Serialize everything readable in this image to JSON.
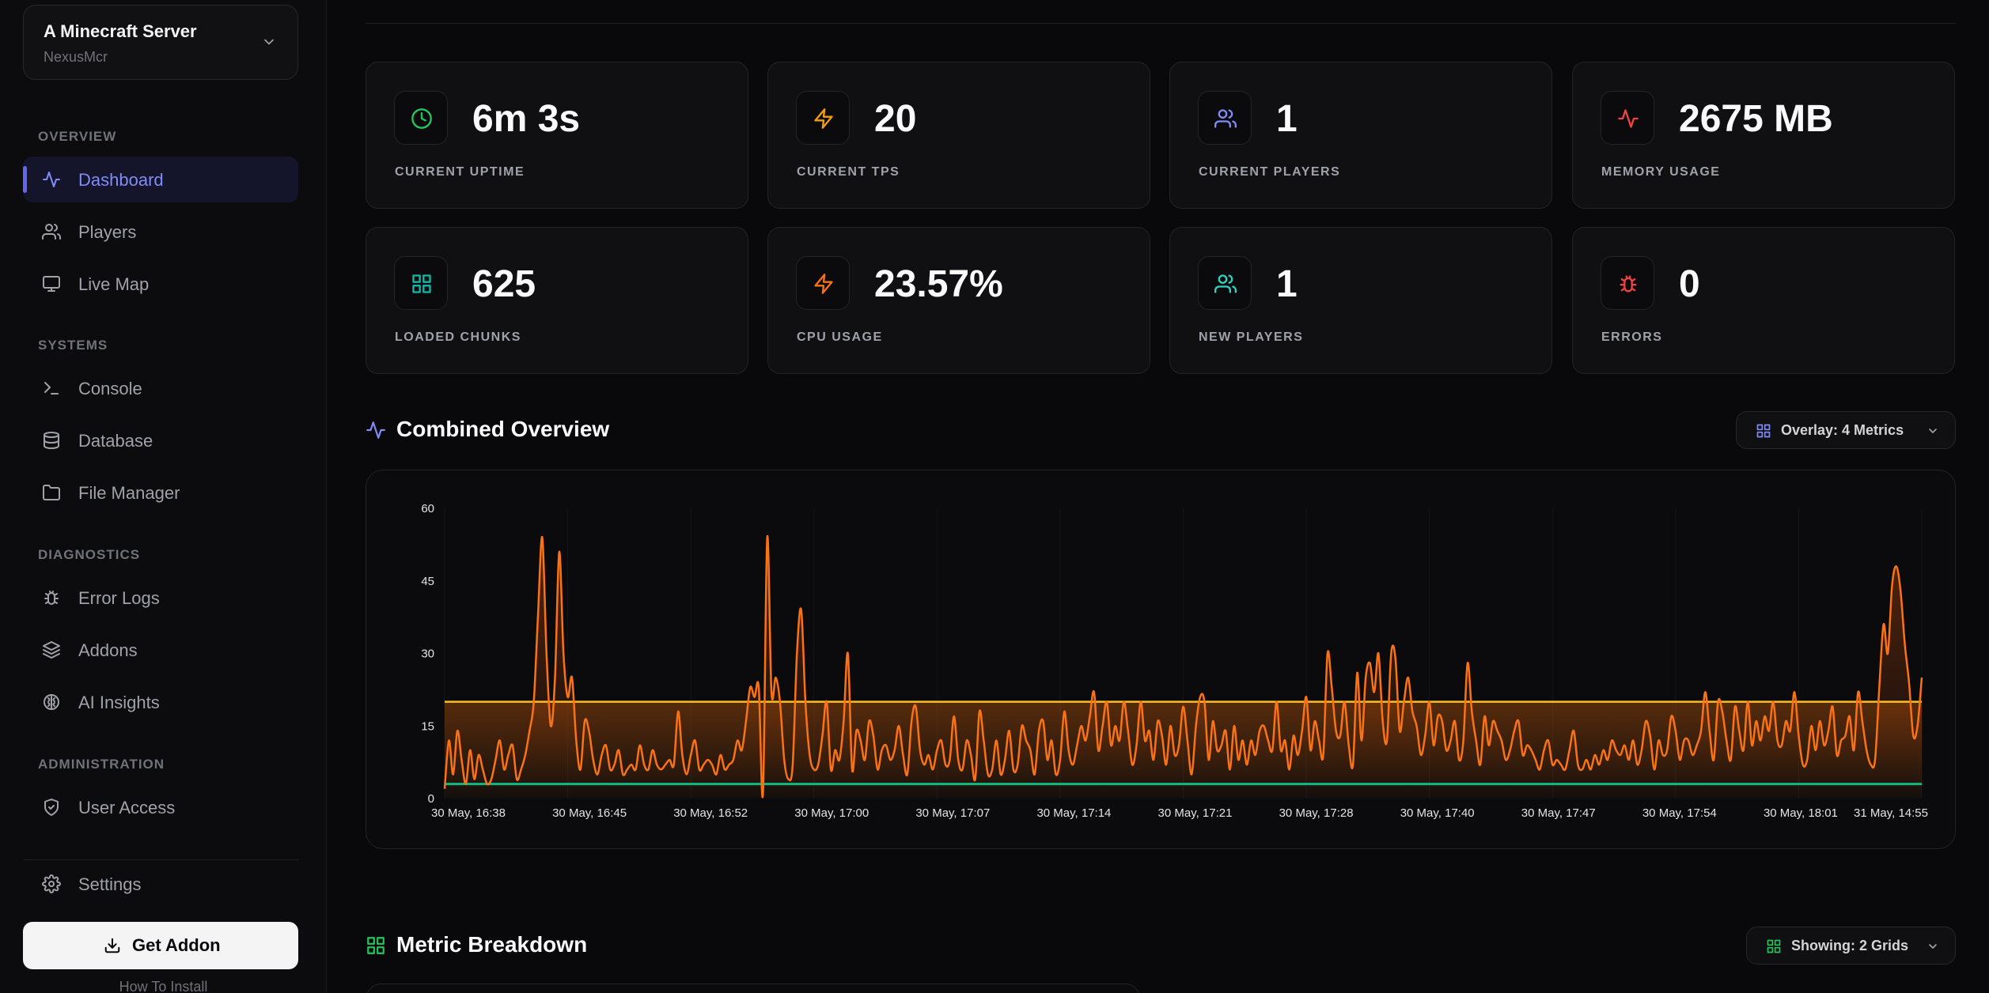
{
  "server": {
    "name": "A Minecraft Server",
    "subtitle": "NexusMcr"
  },
  "sidebar": {
    "sections": [
      {
        "label": "OVERVIEW",
        "items": [
          {
            "label": "Dashboard",
            "icon": "activity-icon",
            "active": true
          },
          {
            "label": "Players",
            "icon": "users-icon"
          },
          {
            "label": "Live Map",
            "icon": "monitor-icon"
          }
        ]
      },
      {
        "label": "SYSTEMS",
        "items": [
          {
            "label": "Console",
            "icon": "terminal-icon"
          },
          {
            "label": "Database",
            "icon": "database-icon"
          },
          {
            "label": "File Manager",
            "icon": "folder-icon"
          }
        ]
      },
      {
        "label": "DIAGNOSTICS",
        "items": [
          {
            "label": "Error Logs",
            "icon": "bug-icon"
          },
          {
            "label": "Addons",
            "icon": "layers-icon"
          },
          {
            "label": "AI Insights",
            "icon": "brain-icon"
          }
        ]
      },
      {
        "label": "ADMINISTRATION",
        "items": [
          {
            "label": "User Access",
            "icon": "shield-check-icon"
          }
        ]
      }
    ],
    "settings_label": "Settings",
    "get_addon_label": "Get Addon",
    "how_install_label": "How To Install"
  },
  "stats": [
    {
      "value": "6m 3s",
      "label": "CURRENT UPTIME",
      "icon": "clock-icon",
      "color": "#22c55e"
    },
    {
      "value": "20",
      "label": "CURRENT TPS",
      "icon": "zap-icon",
      "color": "#f59e0b"
    },
    {
      "value": "1",
      "label": "CURRENT PLAYERS",
      "icon": "users-icon",
      "color": "#818cf8"
    },
    {
      "value": "2675 MB",
      "label": "MEMORY USAGE",
      "icon": "activity-icon",
      "color": "#ef4444"
    },
    {
      "value": "625",
      "label": "LOADED CHUNKS",
      "icon": "grid-icon",
      "color": "#14b8a6"
    },
    {
      "value": "23.57%",
      "label": "CPU USAGE",
      "icon": "zap-icon",
      "color": "#f97316"
    },
    {
      "value": "1",
      "label": "NEW PLAYERS",
      "icon": "users-icon",
      "color": "#2dd4bf"
    },
    {
      "value": "0",
      "label": "ERRORS",
      "icon": "bug-icon",
      "color": "#ef4444"
    }
  ],
  "overview": {
    "title": "Combined Overview",
    "overlay_label": "Overlay: 4 Metrics"
  },
  "breakdown": {
    "title": "Metric Breakdown",
    "showing_label": "Showing: 2 Grids"
  },
  "colors": {
    "accent": "#6366f1",
    "cpu": "#f97316",
    "tps": "#fbbf24",
    "players": "#10b981"
  },
  "chart_data": {
    "type": "line",
    "title": "",
    "ylim": [
      0,
      60
    ],
    "yticks": [
      0,
      15,
      30,
      45,
      60
    ],
    "grid": false,
    "x_tick_labels": [
      "30 May, 16:38",
      "30 May, 16:45",
      "30 May, 16:52",
      "30 May, 17:00",
      "30 May, 17:07",
      "30 May, 17:14",
      "30 May, 17:21",
      "30 May, 17:28",
      "30 May, 17:40",
      "30 May, 17:47",
      "30 May, 17:54",
      "30 May, 18:01",
      "31 May, 14:55"
    ],
    "series": [
      {
        "name": "",
        "color": "#fbbf24",
        "values_constant": 20
      },
      {
        "name": "",
        "color": "#10b981",
        "values_constant": 3
      },
      {
        "name": "",
        "color": "#f97316",
        "values": [
          2,
          12,
          5,
          14,
          8,
          3,
          10,
          4,
          9,
          6,
          3,
          4,
          8,
          12,
          6,
          9,
          11,
          4,
          6,
          9,
          14,
          20,
          38,
          54,
          30,
          15,
          25,
          51,
          30,
          21,
          25,
          12,
          6,
          16,
          14,
          8,
          5,
          9,
          11,
          6,
          7,
          10,
          5,
          6,
          7,
          6,
          11,
          7,
          6,
          10,
          7,
          6,
          7,
          8,
          7,
          18,
          9,
          5,
          9,
          12,
          6,
          7,
          8,
          7,
          5,
          9,
          6,
          7,
          8,
          12,
          10,
          16,
          23,
          21,
          23,
          1,
          54,
          22,
          25,
          20,
          8,
          4,
          7,
          30,
          39,
          20,
          9,
          6,
          7,
          13,
          20,
          6,
          10,
          8,
          16,
          30,
          6,
          14,
          12,
          8,
          16,
          13,
          6,
          10,
          11,
          8,
          10,
          15,
          9,
          5,
          16,
          19,
          10,
          7,
          9,
          6,
          10,
          12,
          7,
          8,
          17,
          8,
          6,
          12,
          9,
          4,
          18,
          12,
          5,
          6,
          12,
          5,
          8,
          14,
          6,
          7,
          15,
          12,
          10,
          5,
          14,
          16,
          8,
          12,
          5,
          8,
          18,
          10,
          7,
          11,
          15,
          12,
          17,
          22,
          10,
          15,
          20,
          11,
          15,
          12,
          20,
          14,
          7,
          11,
          20,
          12,
          14,
          8,
          16,
          13,
          7,
          15,
          9,
          11,
          19,
          12,
          5,
          15,
          21,
          20,
          8,
          16,
          10,
          11,
          14,
          6,
          15,
          8,
          12,
          7,
          12,
          9,
          14,
          15,
          12,
          10,
          20,
          10,
          12,
          6,
          13,
          9,
          14,
          21,
          10,
          16,
          12,
          9,
          30,
          23,
          14,
          13,
          20,
          11,
          7,
          26,
          12,
          25,
          28,
          22,
          30,
          16,
          12,
          30,
          29,
          14,
          20,
          25,
          18,
          15,
          9,
          13,
          20,
          11,
          17,
          16,
          10,
          12,
          16,
          8,
          12,
          28,
          18,
          12,
          7,
          17,
          11,
          16,
          14,
          12,
          8,
          10,
          14,
          16,
          9,
          11,
          10,
          8,
          6,
          10,
          12,
          7,
          8,
          7,
          6,
          10,
          14,
          7,
          6,
          8,
          6,
          9,
          7,
          10,
          8,
          12,
          10,
          9,
          11,
          8,
          12,
          7,
          10,
          16,
          13,
          6,
          12,
          9,
          10,
          17,
          14,
          8,
          12,
          12,
          9,
          11,
          14,
          22,
          14,
          8,
          20,
          18,
          12,
          8,
          19,
          14,
          10,
          20,
          11,
          16,
          12,
          17,
          14,
          20,
          12,
          11,
          16,
          14,
          22,
          13,
          7,
          8,
          15,
          10,
          16,
          11,
          14,
          19,
          9,
          12,
          13,
          17,
          10,
          22,
          16,
          10,
          7,
          8,
          23,
          36,
          30,
          44,
          48,
          43,
          32,
          24,
          13,
          15,
          25
        ]
      }
    ]
  }
}
